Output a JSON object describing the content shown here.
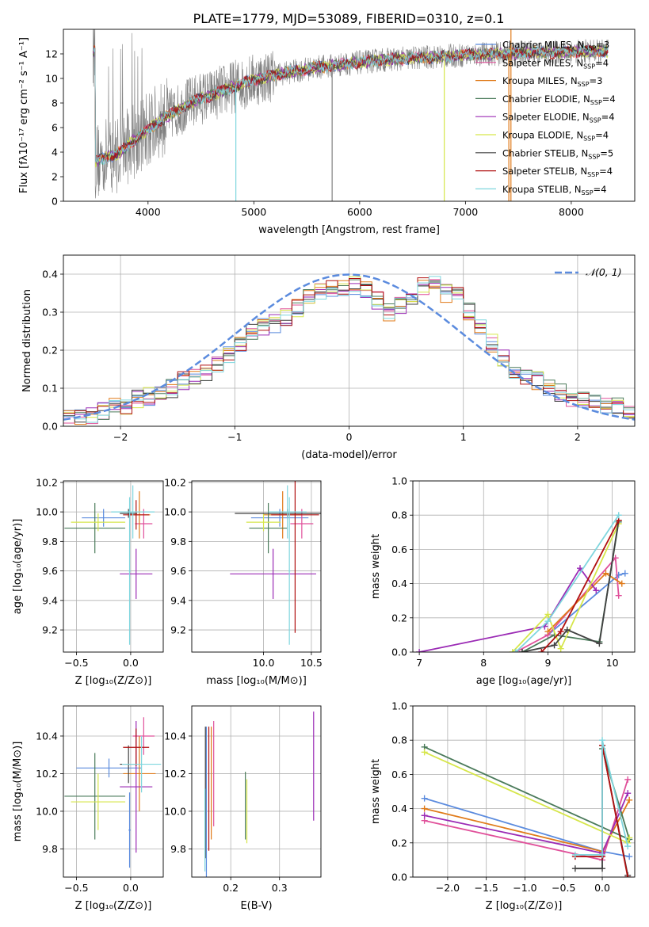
{
  "figure_title": "PLATE=1779, MJD=53089, FIBERID=0310, z=0.1",
  "models": [
    {
      "name": "Chabrier MILES, N$_{SSP}$=3",
      "label": "Chabrier MILES, N",
      "sub": "SSP",
      "tail": "=3",
      "color": "#5b8bde"
    },
    {
      "name": "Salpeter MILES, N$_{SSP}$=4",
      "label": "Salpeter MILES, N",
      "sub": "SSP",
      "tail": "=4",
      "color": "#e0509a"
    },
    {
      "name": "Kroupa MILES, N$_{SSP}$=3",
      "label": "Kroupa MILES, N",
      "sub": "SSP",
      "tail": "=3",
      "color": "#e07b1a"
    },
    {
      "name": "Chabrier ELODIE, N$_{SSP}$=4",
      "label": "Chabrier ELODIE, N",
      "sub": "SSP",
      "tail": "=4",
      "color": "#4a7a5a"
    },
    {
      "name": "Salpeter ELODIE, N$_{SSP}$=4",
      "label": "Salpeter ELODIE, N",
      "sub": "SSP",
      "tail": "=4",
      "color": "#9b2bb5"
    },
    {
      "name": "Kroupa ELODIE, N$_{SSP}$=4",
      "label": "Kroupa ELODIE, N",
      "sub": "SSP",
      "tail": "=4",
      "color": "#d6e64a"
    },
    {
      "name": "Chabrier STELIB, N$_{SSP}$=5",
      "label": "Chabrier STELIB, N",
      "sub": "SSP",
      "tail": "=5",
      "color": "#404040"
    },
    {
      "name": "Salpeter STELIB, N$_{SSP}$=4",
      "label": "Salpeter STELIB, N",
      "sub": "SSP",
      "tail": "=4",
      "color": "#b01010"
    },
    {
      "name": "Kroupa STELIB, N$_{SSP}$=4",
      "label": "Kroupa STELIB, N",
      "sub": "SSP",
      "tail": "=4",
      "color": "#7fd6de"
    }
  ],
  "chart_data": [
    {
      "type": "line",
      "xlabel": "wavelength [Angstrom, rest frame]",
      "ylabel": "Flux [fλ10⁻¹⁷ erg cm⁻² s⁻¹ A⁻¹]",
      "xlim": [
        3200,
        8600
      ],
      "ylim": [
        0,
        14
      ],
      "xticks": [
        4000,
        5000,
        6000,
        7000,
        8000
      ],
      "yticks": [
        0,
        2,
        4,
        6,
        8,
        10,
        12
      ],
      "spectrum_knots": [
        [
          3500,
          3.2
        ],
        [
          3600,
          3.6
        ],
        [
          3700,
          3.8
        ],
        [
          3800,
          4.5
        ],
        [
          3900,
          5.2
        ],
        [
          4000,
          5.8
        ],
        [
          4100,
          6.5
        ],
        [
          4200,
          7.0
        ],
        [
          4300,
          7.5
        ],
        [
          4400,
          8.0
        ],
        [
          4500,
          8.4
        ],
        [
          4600,
          8.6
        ],
        [
          4700,
          9.0
        ],
        [
          4800,
          9.3
        ],
        [
          4900,
          9.6
        ],
        [
          5000,
          9.9
        ],
        [
          5200,
          10.3
        ],
        [
          5400,
          10.6
        ],
        [
          5600,
          10.9
        ],
        [
          5800,
          11.1
        ],
        [
          6000,
          11.3
        ],
        [
          6200,
          11.5
        ],
        [
          6400,
          11.6
        ],
        [
          6600,
          11.7
        ],
        [
          6800,
          11.8
        ],
        [
          7000,
          11.9
        ],
        [
          7200,
          12.0
        ],
        [
          7400,
          12.0
        ],
        [
          7600,
          12.1
        ],
        [
          7800,
          12.1
        ],
        [
          8000,
          12.2
        ],
        [
          8200,
          12.2
        ],
        [
          8350,
          12.2
        ]
      ],
      "observed_range": [
        3480,
        8350
      ],
      "model_range": [
        3480,
        8350
      ],
      "deep_spikes": [
        [
          4830,
          0
        ],
        [
          5740,
          0
        ],
        [
          6800,
          0
        ],
        [
          7410,
          0
        ]
      ],
      "vertical_line_x": 7430
    },
    {
      "type": "bar",
      "xlabel": "(data-model)/error",
      "ylabel": "Normed distribution",
      "xlim": [
        -2.5,
        2.5
      ],
      "ylim": [
        0,
        0.45
      ],
      "xticks": [
        -2,
        -1,
        0,
        1,
        2
      ],
      "yticks": [
        0.0,
        0.1,
        0.2,
        0.3,
        0.4
      ],
      "legend_label": "𝒩(0, 1)",
      "reference_curve": "gaussian mean 0 sigma 1",
      "bin_edges_start": -2.5,
      "bin_width": 0.1,
      "hist_base": [
        0.018,
        0.022,
        0.03,
        0.04,
        0.05,
        0.055,
        0.07,
        0.078,
        0.09,
        0.1,
        0.12,
        0.13,
        0.14,
        0.16,
        0.19,
        0.22,
        0.25,
        0.26,
        0.27,
        0.29,
        0.31,
        0.34,
        0.35,
        0.36,
        0.36,
        0.37,
        0.36,
        0.33,
        0.3,
        0.32,
        0.34,
        0.37,
        0.37,
        0.35,
        0.34,
        0.3,
        0.26,
        0.22,
        0.18,
        0.15,
        0.13,
        0.12,
        0.1,
        0.09,
        0.07,
        0.07,
        0.06,
        0.055,
        0.05,
        0.04
      ]
    },
    {
      "type": "scatter",
      "xlabel": "Z [log₁₀(Z/Z⊙)]",
      "ylabel": "age  [log₁₀(age/yr)]",
      "xlim": [
        -0.62,
        0.3
      ],
      "ylim": [
        9.05,
        10.21
      ],
      "xticks": [
        -0.5,
        0.0
      ],
      "yticks": [
        9.2,
        9.4,
        9.6,
        9.8,
        10.0,
        10.2
      ],
      "points": [
        {
          "x": -0.25,
          "y": 9.96,
          "xerr": 0.2,
          "yerr": 0.06,
          "c": 0
        },
        {
          "x": 0.12,
          "y": 9.92,
          "xerr": 0.08,
          "yerr": 0.1,
          "c": 1
        },
        {
          "x": 0.08,
          "y": 9.98,
          "xerr": 0.1,
          "yerr": 0.16,
          "c": 2
        },
        {
          "x": -0.33,
          "y": 9.89,
          "xerr": 0.28,
          "yerr": 0.17,
          "c": 3
        },
        {
          "x": 0.05,
          "y": 9.58,
          "xerr": 0.15,
          "yerr": 0.17,
          "c": 4
        },
        {
          "x": -0.3,
          "y": 9.93,
          "xerr": 0.25,
          "yerr": 0.06,
          "c": 5
        },
        {
          "x": -0.02,
          "y": 9.99,
          "xerr": 0.08,
          "yerr": 0.03,
          "c": 6
        },
        {
          "x": 0.05,
          "y": 9.98,
          "xerr": 0.12,
          "yerr": 0.1,
          "c": 7
        },
        {
          "x": 0.02,
          "y": 10.0,
          "xerr": 0.2,
          "yerr": 0.18,
          "c": 8
        },
        {
          "x": -0.01,
          "y": 9.6,
          "xerr": 0.01,
          "yerr": 0.5,
          "c": 8
        }
      ]
    },
    {
      "type": "scatter",
      "xlabel": "mass [log₁₀(M/M⊙)]",
      "ylabel": "",
      "xlim": [
        9.25,
        10.6
      ],
      "ylim": [
        9.05,
        10.21
      ],
      "xticks": [
        10.0,
        10.5
      ],
      "yticks": [
        9.2,
        9.4,
        9.6,
        9.8,
        10.0,
        10.2
      ],
      "points": [
        {
          "x": 10.17,
          "y": 9.96,
          "xerr": 0.3,
          "yerr": 0.06,
          "c": 0
        },
        {
          "x": 10.4,
          "y": 9.92,
          "xerr": 0.12,
          "yerr": 0.1,
          "c": 1
        },
        {
          "x": 10.2,
          "y": 9.98,
          "xerr": 0.2,
          "yerr": 0.16,
          "c": 2
        },
        {
          "x": 10.05,
          "y": 9.89,
          "xerr": 0.2,
          "yerr": 0.17,
          "c": 3
        },
        {
          "x": 10.1,
          "y": 9.58,
          "xerr": 0.45,
          "yerr": 0.17,
          "c": 4
        },
        {
          "x": 10.0,
          "y": 9.93,
          "xerr": 0.18,
          "yerr": 0.06,
          "c": 5
        },
        {
          "x": 10.25,
          "y": 9.99,
          "xerr": 0.55,
          "yerr": 0.03,
          "c": 6
        },
        {
          "x": 10.33,
          "y": 9.98,
          "xerr": 0.25,
          "yerr": 0.8,
          "c": 7
        },
        {
          "x": 10.25,
          "y": 10.0,
          "xerr": 0.2,
          "yerr": 0.18,
          "c": 8
        },
        {
          "x": 10.27,
          "y": 9.6,
          "xerr": 0.01,
          "yerr": 0.5,
          "c": 8
        }
      ]
    },
    {
      "type": "line",
      "xlabel": "age  [log₁₀(age/yr)]",
      "ylabel": "mass weight",
      "xlim": [
        6.9,
        10.35
      ],
      "ylim": [
        0,
        1
      ],
      "xticks": [
        7,
        8,
        9,
        10
      ],
      "yticks": [
        0.0,
        0.2,
        0.4,
        0.6,
        0.8,
        1.0
      ],
      "series": [
        {
          "c": 0,
          "x": [
            9.0,
            10.1,
            10.2
          ],
          "y": [
            0.1,
            0.45,
            0.46
          ]
        },
        {
          "c": 1,
          "x": [
            8.5,
            9.0,
            10.05,
            10.1
          ],
          "y": [
            0.0,
            0.1,
            0.55,
            0.33
          ]
        },
        {
          "c": 2,
          "x": [
            9.0,
            9.9,
            10.15
          ],
          "y": [
            0.12,
            0.46,
            0.4
          ]
        },
        {
          "c": 3,
          "x": [
            8.6,
            9.1,
            9.8,
            10.1
          ],
          "y": [
            0.0,
            0.1,
            0.06,
            0.76
          ]
        },
        {
          "c": 4,
          "x": [
            7.0,
            8.95,
            9.5,
            9.75
          ],
          "y": [
            0.0,
            0.15,
            0.49,
            0.36
          ]
        },
        {
          "c": 5,
          "x": [
            8.45,
            9.0,
            9.2,
            10.1
          ],
          "y": [
            0.0,
            0.22,
            0.02,
            0.75
          ]
        },
        {
          "c": 6,
          "x": [
            8.6,
            9.1,
            9.3,
            9.8,
            10.1
          ],
          "y": [
            0.0,
            0.04,
            0.13,
            0.05,
            0.77
          ]
        },
        {
          "c": 7,
          "x": [
            8.9,
            9.2,
            10.1
          ],
          "y": [
            0.0,
            0.12,
            0.77
          ]
        },
        {
          "c": 8,
          "x": [
            8.5,
            9.0,
            10.1
          ],
          "y": [
            0.0,
            0.18,
            0.8
          ]
        }
      ]
    },
    {
      "type": "scatter",
      "xlabel": "Z [log₁₀(Z/Z⊙)]",
      "ylabel": "mass [log₁₀(M/M⊙)]",
      "xlim": [
        -0.62,
        0.3
      ],
      "ylim": [
        9.65,
        10.56
      ],
      "xticks": [
        -0.5,
        0.0
      ],
      "yticks": [
        9.8,
        10.0,
        10.2,
        10.4
      ],
      "points": [
        {
          "x": -0.2,
          "y": 10.23,
          "xerr": 0.3,
          "yerr": 0.05,
          "c": 0
        },
        {
          "x": 0.12,
          "y": 10.4,
          "xerr": 0.1,
          "yerr": 0.1,
          "c": 1
        },
        {
          "x": 0.08,
          "y": 10.2,
          "xerr": 0.15,
          "yerr": 0.2,
          "c": 2
        },
        {
          "x": -0.33,
          "y": 10.08,
          "xerr": 0.28,
          "yerr": 0.23,
          "c": 3
        },
        {
          "x": 0.05,
          "y": 10.13,
          "xerr": 0.15,
          "yerr": 0.35,
          "c": 4
        },
        {
          "x": -0.3,
          "y": 10.05,
          "xerr": 0.25,
          "yerr": 0.15,
          "c": 5
        },
        {
          "x": -0.02,
          "y": 10.25,
          "xerr": 0.08,
          "yerr": 0.1,
          "c": 6
        },
        {
          "x": 0.05,
          "y": 10.34,
          "xerr": 0.12,
          "yerr": 0.1,
          "c": 7
        },
        {
          "x": 0.1,
          "y": 10.25,
          "xerr": 0.18,
          "yerr": 0.15,
          "c": 8
        },
        {
          "x": -0.01,
          "y": 9.9,
          "xerr": 0.01,
          "yerr": 0.2,
          "c": 0
        }
      ]
    },
    {
      "type": "scatter",
      "xlabel": "E(B-V)",
      "ylabel": "",
      "xlim": [
        0.12,
        0.385
      ],
      "ylim": [
        9.65,
        10.56
      ],
      "xticks": [
        0.2,
        0.3
      ],
      "yticks": [
        9.8,
        10.0,
        10.2,
        10.4
      ],
      "points": [
        {
          "x": 0.15,
          "y": 10.05,
          "xerr": 0.0,
          "yerr": 0.4,
          "c": 0
        },
        {
          "x": 0.165,
          "y": 10.2,
          "xerr": 0.0,
          "yerr": 0.28,
          "c": 1
        },
        {
          "x": 0.16,
          "y": 10.15,
          "xerr": 0.0,
          "yerr": 0.3,
          "c": 2
        },
        {
          "x": 0.23,
          "y": 10.03,
          "xerr": 0.0,
          "yerr": 0.18,
          "c": 3
        },
        {
          "x": 0.37,
          "y": 10.24,
          "xerr": 0.0,
          "yerr": 0.29,
          "c": 4
        },
        {
          "x": 0.233,
          "y": 10.0,
          "xerr": 0.0,
          "yerr": 0.17,
          "c": 5
        },
        {
          "x": 0.148,
          "y": 10.1,
          "xerr": 0.0,
          "yerr": 0.35,
          "c": 6
        },
        {
          "x": 0.155,
          "y": 10.12,
          "xerr": 0.0,
          "yerr": 0.33,
          "c": 7
        },
        {
          "x": 0.147,
          "y": 9.9,
          "xerr": 0.0,
          "yerr": 0.22,
          "c": 8
        }
      ]
    },
    {
      "type": "line",
      "xlabel": "Z [log₁₀(Z/Z⊙)]",
      "ylabel": "mass weight",
      "xlim": [
        -2.45,
        0.42
      ],
      "ylim": [
        0,
        1
      ],
      "xticks": [
        -2.0,
        -1.5,
        -1.0,
        -0.5,
        0.0
      ],
      "yticks": [
        0.0,
        0.2,
        0.4,
        0.6,
        0.8,
        1.0
      ],
      "series": [
        {
          "c": 0,
          "x": [
            -2.3,
            0.0,
            0.35
          ],
          "y": [
            0.46,
            0.15,
            0.12
          ]
        },
        {
          "c": 1,
          "x": [
            -2.3,
            0.0,
            0.33
          ],
          "y": [
            0.33,
            0.1,
            0.57
          ]
        },
        {
          "c": 2,
          "x": [
            -2.3,
            0.0,
            0.35
          ],
          "y": [
            0.4,
            0.15,
            0.45
          ]
        },
        {
          "c": 3,
          "x": [
            -2.3,
            0.35,
            0.0
          ],
          "y": [
            0.76,
            0.22,
            0.75
          ]
        },
        {
          "c": 4,
          "x": [
            -2.3,
            0.0,
            0.33
          ],
          "y": [
            0.36,
            0.14,
            0.49
          ]
        },
        {
          "c": 5,
          "x": [
            -2.3,
            0.33,
            0.35
          ],
          "y": [
            0.73,
            0.2,
            0.23
          ]
        },
        {
          "c": 6,
          "x": [
            -0.35,
            0.0,
            0.0,
            0.33
          ],
          "y": [
            0.05,
            0.05,
            0.77,
            0.01
          ]
        },
        {
          "c": 7,
          "x": [
            -0.35,
            0.0,
            0.0,
            0.33
          ],
          "y": [
            0.12,
            0.12,
            0.77,
            0.0
          ]
        },
        {
          "c": 8,
          "x": [
            -0.35,
            0.0,
            0.0,
            0.33
          ],
          "y": [
            0.13,
            0.13,
            0.8,
            0.18
          ]
        }
      ]
    }
  ]
}
